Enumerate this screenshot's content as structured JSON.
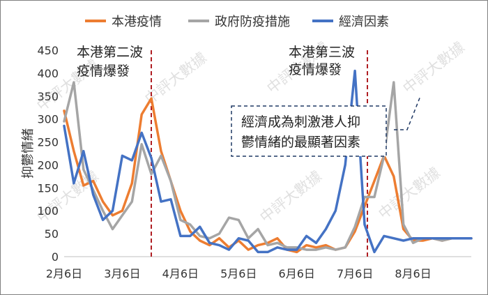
{
  "chart_data": {
    "type": "line",
    "title": "",
    "ylabel": "抑鬱情緒",
    "xlabel": "",
    "ylim": [
      0,
      450
    ],
    "yticks": [
      0,
      50,
      100,
      150,
      200,
      250,
      300,
      350,
      400,
      450
    ],
    "grid": false,
    "legend_position": "top",
    "x_tick_labels": [
      "2月6日",
      "3月6日",
      "4月6日",
      "5月6日",
      "6月6日",
      "7月6日",
      "8月6日"
    ],
    "n_points": 43,
    "series": [
      {
        "name": "本港疫情",
        "color": "#ED7D31",
        "values": [
          318,
          230,
          155,
          165,
          120,
          90,
          100,
          160,
          310,
          345,
          230,
          165,
          100,
          55,
          35,
          25,
          40,
          20,
          35,
          15,
          25,
          30,
          40,
          15,
          10,
          25,
          20,
          25,
          15,
          20,
          55,
          110,
          165,
          220,
          175,
          60,
          35,
          35,
          40,
          35,
          40,
          40,
          40
        ]
      },
      {
        "name": "政府防疫措施",
        "color": "#A5A5A5",
        "values": [
          295,
          380,
          190,
          145,
          100,
          60,
          90,
          120,
          245,
          180,
          220,
          165,
          80,
          70,
          45,
          40,
          50,
          85,
          80,
          40,
          60,
          25,
          30,
          20,
          20,
          15,
          15,
          20,
          15,
          20,
          65,
          130,
          130,
          220,
          380,
          70,
          30,
          40,
          40,
          35,
          40,
          40,
          40
        ]
      },
      {
        "name": "經濟因素",
        "color": "#4472C4",
        "values": [
          285,
          160,
          230,
          135,
          80,
          100,
          220,
          210,
          270,
          215,
          120,
          125,
          45,
          45,
          65,
          30,
          25,
          15,
          40,
          35,
          10,
          10,
          20,
          15,
          15,
          45,
          30,
          60,
          100,
          200,
          405,
          70,
          10,
          45,
          40,
          35,
          40,
          40,
          40,
          40,
          40,
          40,
          40
        ]
      }
    ],
    "annotations": [
      "本港第二波疫情爆發",
      "本港第三波疫情爆發",
      "經濟成為刺激港人抑鬱情緒的最顯著因素"
    ],
    "watermark": "中評大數據"
  },
  "legend": [
    {
      "label": "本港疫情",
      "color": "#ED7D31"
    },
    {
      "label": "政府防疫措施",
      "color": "#A5A5A5"
    },
    {
      "label": "經濟因素",
      "color": "#4472C4"
    }
  ],
  "annotations": {
    "wave2_line1": "本港第二波",
    "wave2_line2": "疫情爆發",
    "wave3_line1": "本港第三波",
    "wave3_line2": "疫情爆發",
    "box_line1": "經濟成為刺激港人抑",
    "box_line2": "鬱情緒的最顯著因素"
  },
  "watermark_text": "中評大數據",
  "marker_color": "#B01E23"
}
